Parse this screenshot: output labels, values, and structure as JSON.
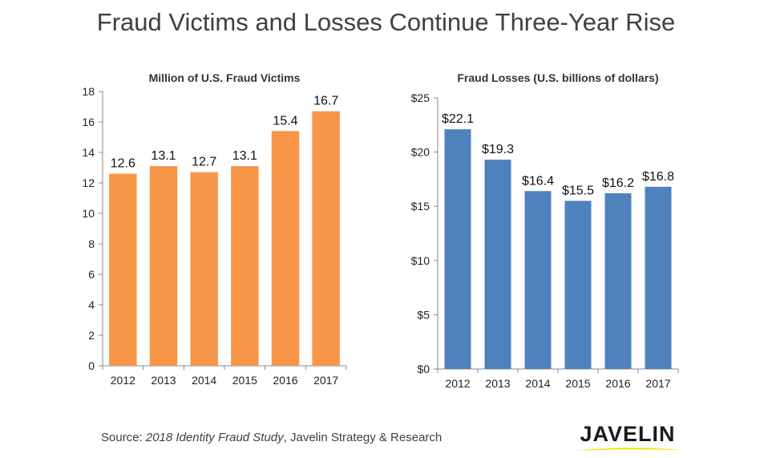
{
  "title": "Fraud Victims and Losses Continue Three-Year Rise",
  "source": {
    "prefix": "Source: ",
    "study": "2018 Identity Fraud Study",
    "suffix": ", Javelin Strategy & Research"
  },
  "logo": {
    "text": "JAVELIN",
    "accent_color": "#f2e300"
  },
  "chart_data": [
    {
      "type": "bar",
      "title": "Million of U.S. Fraud Victims",
      "categories": [
        "2012",
        "2013",
        "2014",
        "2015",
        "2016",
        "2017"
      ],
      "values": [
        12.6,
        13.1,
        12.7,
        13.1,
        15.4,
        16.7
      ],
      "value_labels": [
        "12.6",
        "13.1",
        "12.7",
        "13.1",
        "15.4",
        "16.7"
      ],
      "ylim": [
        0,
        18
      ],
      "yticks": [
        0,
        2,
        4,
        6,
        8,
        10,
        12,
        14,
        16,
        18
      ],
      "ytick_labels": [
        "0",
        "2",
        "4",
        "6",
        "8",
        "10",
        "12",
        "14",
        "16",
        "18"
      ],
      "grid": false,
      "color": "#f79646"
    },
    {
      "type": "bar",
      "title": "Fraud Losses  (U.S. billions of dollars)",
      "categories": [
        "2012",
        "2013",
        "2014",
        "2015",
        "2016",
        "2017"
      ],
      "values": [
        22.1,
        19.3,
        16.4,
        15.5,
        16.2,
        16.8
      ],
      "value_labels": [
        "$22.1",
        "$19.3",
        "$16.4",
        "$15.5",
        "$16.2",
        "$16.8"
      ],
      "ylim": [
        0,
        25
      ],
      "yticks": [
        0,
        5,
        10,
        15,
        20,
        25
      ],
      "ytick_labels": [
        "$0",
        "$5",
        "$10",
        "$15",
        "$20",
        "$25"
      ],
      "grid": false,
      "color": "#4f81bd"
    }
  ]
}
